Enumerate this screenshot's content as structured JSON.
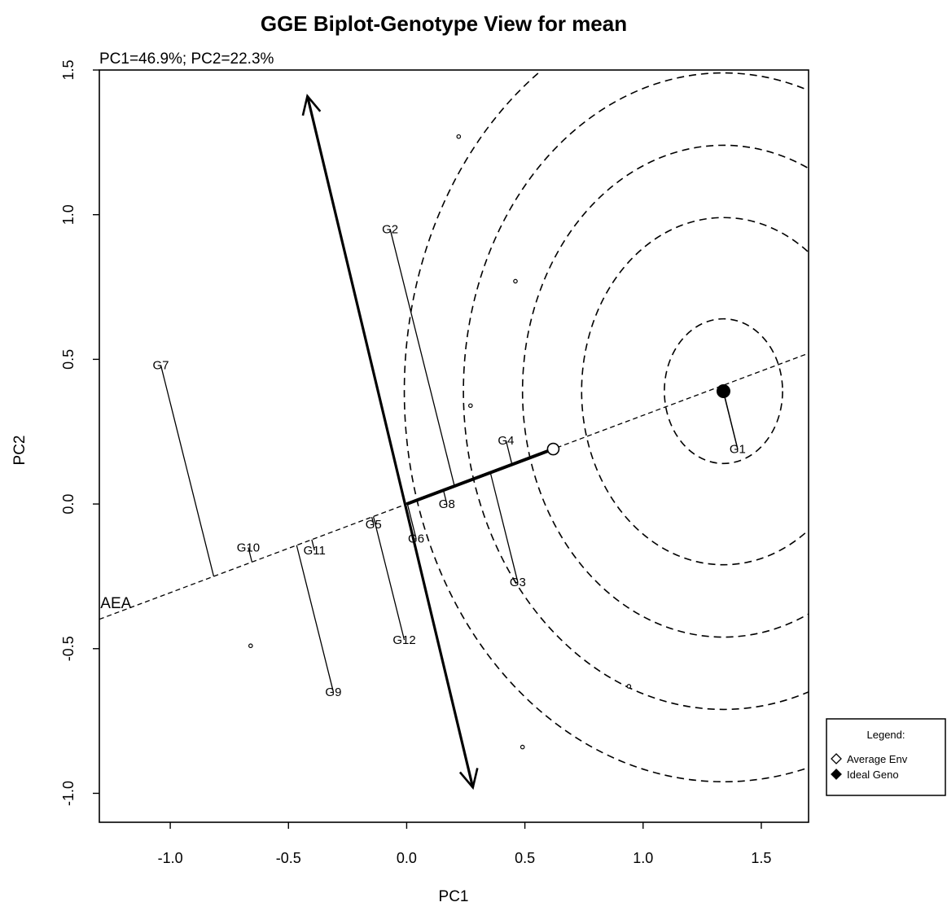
{
  "chart_data": {
    "type": "scatter",
    "title": "GGE Biplot-Genotype View for mean",
    "subtitle": "PC1=46.9%; PC2=22.3%",
    "xlabel": "PC1",
    "ylabel": "PC2",
    "xlim": [
      -1.3,
      1.7
    ],
    "ylim": [
      -1.1,
      1.5
    ],
    "xticks": [
      -1.0,
      -0.5,
      0.0,
      0.5,
      1.0,
      1.5
    ],
    "yticks": [
      -1.0,
      -0.5,
      0.0,
      0.5,
      1.0,
      1.5
    ],
    "xtick_labels": [
      "-1.0",
      "-0.5",
      "0.0",
      "0.5",
      "1.0",
      "1.5"
    ],
    "ytick_labels": [
      "-1.0",
      "-0.5",
      "0.0",
      "0.5",
      "1.0",
      "1.5"
    ],
    "aea_label": "AEA",
    "average_env": {
      "x": 0.62,
      "y": 0.19
    },
    "ideal_genotype": {
      "x": 1.34,
      "y": 0.39
    },
    "concentric_radii": [
      0.25,
      0.6,
      0.85,
      1.1,
      1.35
    ],
    "perpendicular_axis": {
      "from": [
        0.28,
        -0.98
      ],
      "to": [
        -0.42,
        1.41
      ]
    },
    "genotypes": [
      {
        "name": "G1",
        "x": 1.4,
        "y": 0.19
      },
      {
        "name": "G2",
        "x": -0.07,
        "y": 0.95
      },
      {
        "name": "G3",
        "x": 0.47,
        "y": -0.27
      },
      {
        "name": "G4",
        "x": 0.42,
        "y": 0.22
      },
      {
        "name": "G5",
        "x": -0.14,
        "y": -0.07
      },
      {
        "name": "G6",
        "x": 0.04,
        "y": -0.12
      },
      {
        "name": "G7",
        "x": -1.04,
        "y": 0.48
      },
      {
        "name": "G8",
        "x": 0.17,
        "y": 0.0
      },
      {
        "name": "G9",
        "x": -0.31,
        "y": -0.65
      },
      {
        "name": "G10",
        "x": -0.67,
        "y": -0.15
      },
      {
        "name": "G11",
        "x": -0.39,
        "y": -0.16
      },
      {
        "name": "G12",
        "x": -0.01,
        "y": -0.47
      }
    ],
    "environment_points": [
      {
        "x": 0.22,
        "y": 1.27
      },
      {
        "x": 0.46,
        "y": 0.77
      },
      {
        "x": 0.27,
        "y": 0.34
      },
      {
        "x": -0.66,
        "y": -0.49
      },
      {
        "x": 0.94,
        "y": -0.63
      },
      {
        "x": 0.49,
        "y": -0.84
      }
    ],
    "legend": {
      "title": "Legend:",
      "items": [
        "Average Env",
        "Ideal Geno"
      ],
      "placement": "right, outside plot area"
    }
  }
}
